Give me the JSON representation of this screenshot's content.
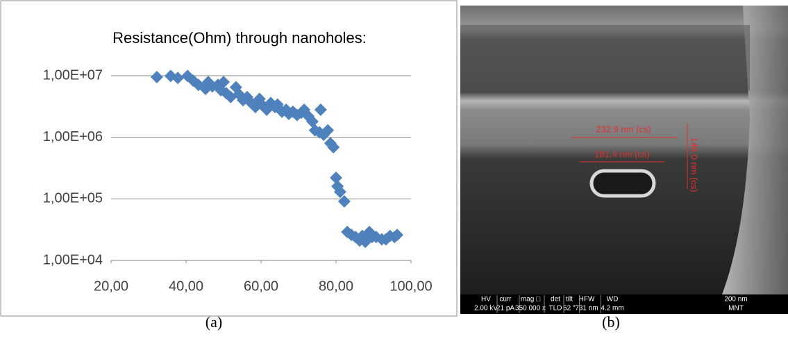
{
  "chart_data": {
    "type": "scatter",
    "title": "Resistance(Ohm) through nanoholes:",
    "color": "#4f81bd",
    "log_y": true,
    "grid": true,
    "x": [
      32.2,
      35.9,
      37.8,
      40.4,
      41.9,
      43.3,
      45.2,
      45.9,
      47.0,
      48.5,
      49.3,
      50.0,
      50.7,
      51.9,
      53.3,
      54.1,
      55.2,
      56.3,
      57.4,
      58.5,
      59.6,
      60.4,
      61.5,
      62.6,
      63.7,
      64.4,
      65.6,
      66.7,
      67.4,
      68.5,
      69.6,
      70.7,
      71.5,
      72.6,
      73.7,
      74.4,
      75.6,
      75.9,
      76.7,
      77.8,
      78.5,
      79.3,
      80.0,
      80.4,
      81.1,
      82.2,
      83.0,
      84.1,
      85.2,
      86.3,
      87.0,
      87.8,
      88.9,
      89.6,
      90.7,
      92.2,
      93.3,
      94.4,
      95.6,
      96.3
    ],
    "values": [
      9500000,
      9900000,
      9200000,
      9900000,
      8300000,
      7100000,
      6100000,
      7900000,
      6700000,
      7100000,
      5800000,
      7900000,
      5200000,
      4500000,
      6500000,
      5000000,
      4000000,
      4500000,
      3600000,
      3100000,
      4200000,
      3300000,
      2800000,
      3600000,
      3100000,
      3400000,
      2600000,
      2800000,
      2400000,
      2600000,
      2300000,
      2500000,
      2800000,
      2200000,
      1800000,
      1300000,
      1200000,
      2800000,
      1100000,
      1300000,
      800000,
      690000,
      220000,
      160000,
      130000,
      91000,
      29000,
      26000,
      24000,
      21000,
      25000,
      20000,
      29000,
      24000,
      24000,
      22000,
      22000,
      25000,
      24000,
      26000
    ],
    "xlim": [
      20,
      100
    ],
    "xticks": [
      {
        "value": 20,
        "label": "20,00"
      },
      {
        "value": 40,
        "label": "40,00"
      },
      {
        "value": 60,
        "label": "60,00"
      },
      {
        "value": 80,
        "label": "80,00"
      },
      {
        "value": 100,
        "label": "100,00"
      }
    ],
    "ylim": [
      10000,
      10000000
    ],
    "yticks": [
      {
        "value": 10000,
        "label": "1,00E+04"
      },
      {
        "value": 100000,
        "label": "1,00E+05"
      },
      {
        "value": 1000000,
        "label": "1,00E+06"
      },
      {
        "value": 10000000,
        "label": "1,00E+07"
      }
    ]
  },
  "image": {
    "annotations": [
      "232.9 nm (cs)",
      "181.4 nm (cs)",
      "146.0 nm (cs)"
    ],
    "databar": [
      [
        "HV",
        "2.00 kV"
      ],
      [
        "curr",
        "21 pA"
      ],
      [
        "mag □",
        "350 000 x"
      ],
      [
        "det",
        "TLD"
      ],
      [
        "tilt",
        "52 °"
      ],
      [
        "HFW",
        "731 nm"
      ],
      [
        "WD",
        "4.2 mm"
      ],
      [
        "200 nm",
        "MNT"
      ]
    ]
  },
  "captions": [
    "(a)",
    "(b)"
  ]
}
